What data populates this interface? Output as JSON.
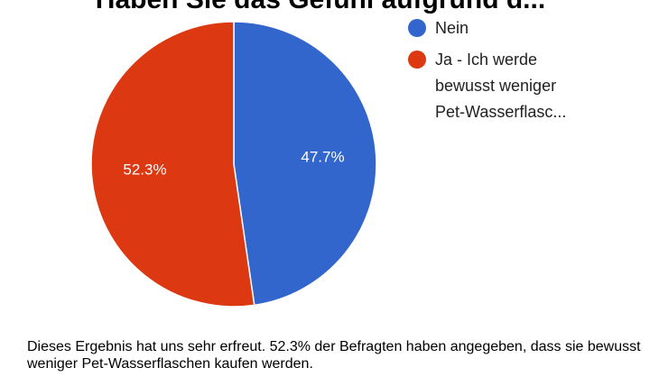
{
  "chart_data": {
    "type": "pie",
    "title": "Haben Sie das Gefühl aufgrund d...",
    "slices": [
      {
        "label": "Nein",
        "value": 47.7,
        "display": "47.7%",
        "color": "#3366cc"
      },
      {
        "label": "Ja - Ich werde bewusst weniger Pet-Wasserflasc...",
        "value": 52.3,
        "display": "52.3%",
        "color": "#dc3912"
      }
    ],
    "legend_position": "right"
  },
  "caption": "Dieses Ergebnis hat uns sehr erfreut. 52.3% der Befragten haben angegeben, dass sie bewusst weniger Pet-Wasserflaschen kaufen werden."
}
